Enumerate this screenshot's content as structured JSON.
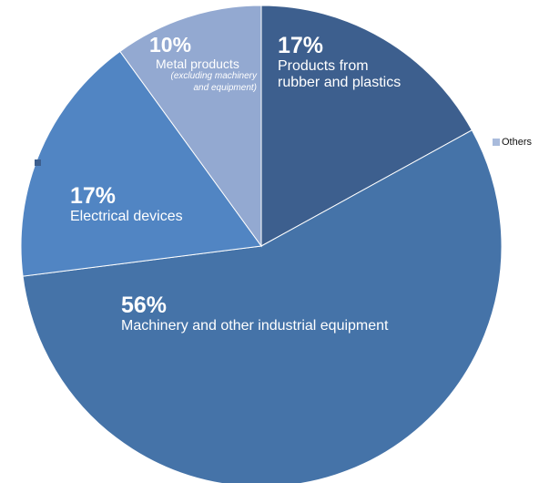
{
  "chart_data": {
    "type": "pie",
    "start_angle_deg": 0,
    "direction": "clockwise",
    "slices": [
      {
        "percent_label": "17%",
        "label": "Products from rubber and plastics",
        "label_lines": [
          "Products from",
          "rubber and plastics"
        ],
        "value": 17,
        "color": "#3d5f8e"
      },
      {
        "percent_label": "56%",
        "label": "Machinery and other industrial equipment",
        "label_lines": [
          "Machinery and other industrial equipment"
        ],
        "value": 56,
        "color": "#4573a8"
      },
      {
        "percent_label": "17%",
        "label": "Electrical devices",
        "label_lines": [
          "Electrical devices"
        ],
        "value": 17,
        "color": "#5185c3"
      },
      {
        "percent_label": "10%",
        "label": "Metal products",
        "label_lines": [
          "Metal products"
        ],
        "note_lines": [
          "(excluding machinery",
          "and equipment)"
        ],
        "value": 10,
        "color": "#93a9d1"
      }
    ],
    "legend": {
      "entries": [
        {
          "name": "Others",
          "color": "#a9bbdc"
        }
      ],
      "position": "right",
      "marker_color": "#3d5f8e"
    }
  }
}
